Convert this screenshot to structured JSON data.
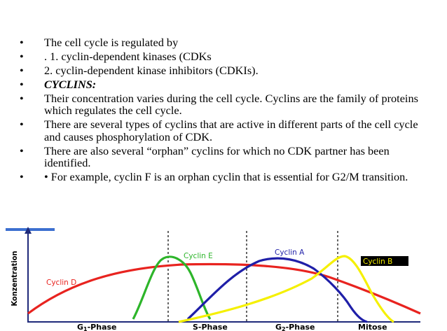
{
  "bullets": [
    {
      "text": "The cell cycle is regulated by",
      "style": "normal"
    },
    {
      "text": ". 1. cyclin-dependent kinases (CDKs",
      "style": "normal"
    },
    {
      "text": " 2. cyclin-dependent kinase inhibitors (CDKIs).",
      "style": "normal"
    },
    {
      "text": "CYCLINS:",
      "style": "bold-italic"
    },
    {
      "text": " Their concentration varies during the cell cycle. Cyclins are the family of proteins which regulates the cell cycle.",
      "style": "normal"
    },
    {
      "text": "There are several types of cyclins that are active in different parts of the cell cycle and causes phosphorylation of CDK.",
      "style": "normal"
    },
    {
      "text": " There are also several “orphan” cyclins for which no CDK partner has been identified.",
      "style": "normal"
    },
    {
      "text": "• For example, cyclin F is an orphan cyclin that is essential for G2/M transition.",
      "style": "normal"
    }
  ],
  "bullet_symbol": "•",
  "figure": {
    "ylabel": "Konzentration",
    "phases": [
      "G1-Phase",
      "S-Phase",
      "G2-Phase",
      "Mitose"
    ],
    "phase_labels": {
      "g1": {
        "main": "G",
        "sub": "1",
        "rest": "-Phase"
      },
      "s": {
        "main": "S-Phase",
        "sub": "",
        "rest": ""
      },
      "g2": {
        "main": "G",
        "sub": "2",
        "rest": "-Phase"
      },
      "m": {
        "main": "Mitose",
        "sub": "",
        "rest": ""
      }
    },
    "curves": [
      {
        "name": "Cyclin D",
        "color": "#e8231f"
      },
      {
        "name": "Cyclin E",
        "color": "#2db52a"
      },
      {
        "name": "Cyclin A",
        "color": "#1f1fa8"
      },
      {
        "name": "Cyclin B",
        "color": "#f5f000"
      }
    ],
    "axis_color": "#1f2a7a",
    "accent_color": "#3c6fd0"
  }
}
